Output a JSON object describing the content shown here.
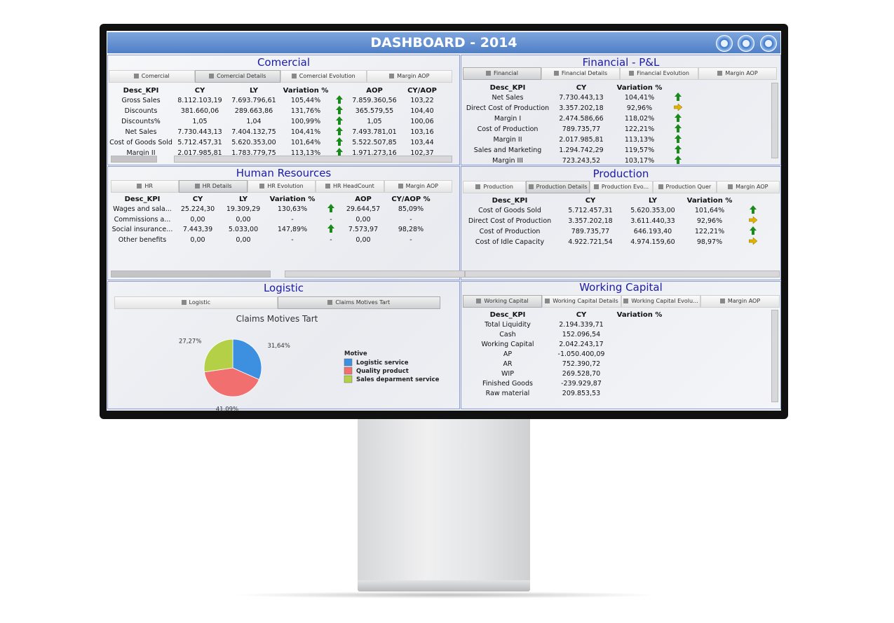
{
  "header": {
    "title": "DASHBOARD - 2014"
  },
  "panels": [
    {
      "title": "Comercial",
      "tabs": [
        "Comercial",
        "Comercial Details",
        "Comercial Evolution",
        "Margin AOP"
      ],
      "active_tab": 1,
      "table": {
        "columns": [
          "Desc_KPI",
          "CY",
          "LY",
          "Variation %",
          null,
          "AOP",
          "CY/AOP"
        ],
        "rows": [
          {
            "cells": [
              "Gross Sales",
              "8.112.103,19",
              "7.693.796,61",
              "105,44%",
              null,
              "7.859.360,56",
              "103,22"
            ],
            "arrow": "up"
          },
          {
            "cells": [
              "Discounts",
              "381.660,06",
              "289.663,86",
              "131,76%",
              null,
              "365.579,55",
              "104,40"
            ],
            "arrow": "up"
          },
          {
            "cells": [
              "Discounts%",
              "1,05",
              "1,04",
              "100,99%",
              null,
              "1,05",
              "100,06"
            ],
            "arrow": "up"
          },
          {
            "cells": [
              "Net Sales",
              "7.730.443,13",
              "7.404.132,75",
              "104,41%",
              null,
              "7.493.781,01",
              "103,16"
            ],
            "arrow": "up"
          },
          {
            "cells": [
              "Cost of Goods Sold",
              "5.712.457,31",
              "5.620.353,00",
              "101,64%",
              null,
              "5.522.507,85",
              "103,44"
            ],
            "arrow": "up"
          },
          {
            "cells": [
              "Margin II",
              "2.017.985,81",
              "1.783.779,75",
              "113,13%",
              null,
              "1.971.273,16",
              "102,37"
            ],
            "arrow": "up"
          }
        ]
      }
    },
    {
      "title": "Financial - P&L",
      "tabs": [
        "Financial",
        "Financial Details",
        "Financial Evolution",
        "Margin AOP"
      ],
      "active_tab": 0,
      "table": {
        "columns": [
          "Desc_KPI",
          "CY",
          "Variation %",
          null
        ],
        "rows": [
          {
            "cells": [
              "Net Sales",
              "7.730.443,13",
              "104,41%",
              null
            ],
            "arrow": "up"
          },
          {
            "cells": [
              "Direct Cost of Production",
              "3.357.202,18",
              "92,96%",
              null
            ],
            "arrow": "right"
          },
          {
            "cells": [
              "Margin I",
              "2.474.586,66",
              "118,02%",
              null
            ],
            "arrow": "up"
          },
          {
            "cells": [
              "Cost of Production",
              "789.735,77",
              "122,21%",
              null
            ],
            "arrow": "up"
          },
          {
            "cells": [
              "Margin II",
              "2.017.985,81",
              "113,13%",
              null
            ],
            "arrow": "up"
          },
          {
            "cells": [
              "Sales and Marketing",
              "1.294.742,29",
              "119,57%",
              null
            ],
            "arrow": "up"
          },
          {
            "cells": [
              "Margin III",
              "723.243,52",
              "103,17%",
              null
            ],
            "arrow": "up"
          }
        ]
      }
    },
    {
      "title": "Human Resources",
      "tabs": [
        "HR",
        "HR Details",
        "HR Evolution",
        "HR HeadCount",
        "Margin AOP"
      ],
      "active_tab": 1,
      "table": {
        "columns": [
          "Desc_KPI",
          "CY",
          "LY",
          "Variation %",
          null,
          "AOP",
          "CY/AOP %"
        ],
        "rows": [
          {
            "cells": [
              "Wages and sala...",
              "25.224,30",
              "19.309,29",
              "130,63%",
              null,
              "29.644,57",
              "85,09%"
            ],
            "arrow": "up"
          },
          {
            "cells": [
              "Commissions a...",
              "0,00",
              "0,00",
              "-",
              "-",
              "0,00",
              "-"
            ]
          },
          {
            "cells": [
              "Social insurance...",
              "7.443,39",
              "5.033,00",
              "147,89%",
              null,
              "7.573,97",
              "98,28%"
            ],
            "arrow": "up"
          },
          {
            "cells": [
              "Other benefits",
              "0,00",
              "0,00",
              "-",
              "-",
              "0,00",
              "-"
            ]
          }
        ]
      }
    },
    {
      "title": "Production",
      "tabs": [
        "Production",
        "Production Details",
        "Production Evo...",
        "Production Quer",
        "Margin AOP"
      ],
      "active_tab": 1,
      "table": {
        "columns": [
          "Desc_KPI",
          "CY",
          "LY",
          "Variation %",
          null
        ],
        "rows": [
          {
            "cells": [
              "Cost of Goods Sold",
              "5.712.457,31",
              "5.620.353,00",
              "101,64%",
              null
            ],
            "arrow": "up"
          },
          {
            "cells": [
              "Direct Cost of Production",
              "3.357.202,18",
              "3.611.440,33",
              "92,96%",
              null
            ],
            "arrow": "right"
          },
          {
            "cells": [
              "Cost of Production",
              "789.735,77",
              "646.193,40",
              "122,21%",
              null
            ],
            "arrow": "up"
          },
          {
            "cells": [
              "Cost of Idle Capacity",
              "4.922.721,54",
              "4.974.159,60",
              "98,97%",
              null
            ],
            "arrow": "right"
          }
        ]
      }
    },
    {
      "title": "Logistic",
      "tabs": [
        "Logistic",
        "Claims Motives Tart"
      ],
      "active_tab": 1,
      "chart": {
        "type": "pie",
        "title": "Claims Motives Tart",
        "legend_title": "Motive",
        "categories": [
          "Logistic service",
          "Quality product",
          "Sales deparment service"
        ],
        "values": [
          31.64,
          41.09,
          27.27
        ],
        "value_labels": [
          "31,64%",
          "41,09%",
          "27,27%"
        ],
        "colors": [
          "#3d8fe0",
          "#f26f6f",
          "#b4d046"
        ]
      }
    },
    {
      "title": "Working Capital",
      "tabs": [
        "Working Capital",
        "Working Capital Details",
        "Working Capital Evolu...",
        "Margin AOP"
      ],
      "active_tab": 0,
      "table": {
        "columns": [
          "Desc_KPI",
          "CY",
          "Variation %"
        ],
        "rows": [
          {
            "cells": [
              "Total Liquidity",
              "2.194.339,71",
              null
            ]
          },
          {
            "cells": [
              "Cash",
              "152.096,54",
              null
            ]
          },
          {
            "cells": [
              "Working Capital",
              "2.042.243,17",
              null
            ]
          },
          {
            "cells": [
              "AP",
              "-1.050.400,09",
              null
            ]
          },
          {
            "cells": [
              "AR",
              "752.390,72",
              null
            ]
          },
          {
            "cells": [
              "WIP",
              "269.528,70",
              null
            ]
          },
          {
            "cells": [
              "Finished Goods",
              "-239.929,87",
              null
            ]
          },
          {
            "cells": [
              "Raw material",
              "209.853,53",
              null
            ]
          }
        ]
      }
    }
  ]
}
